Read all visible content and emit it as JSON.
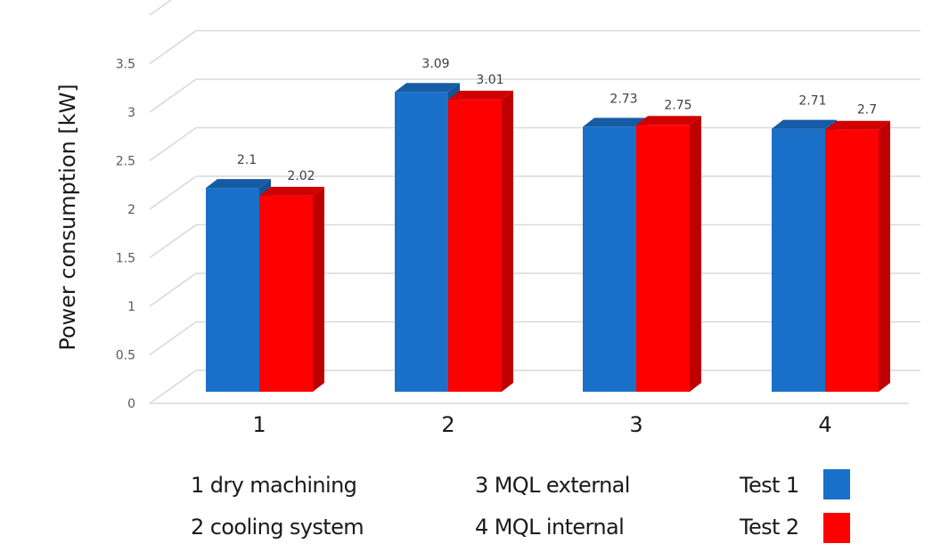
{
  "chart_data": {
    "type": "bar",
    "style": "3d-clustered-column",
    "title": "",
    "xlabel": "",
    "ylabel": "Power consumption [kW]",
    "categories": [
      "1",
      "2",
      "3",
      "4"
    ],
    "series": [
      {
        "name": "Test 1",
        "color": "#1a70c8",
        "values": [
          2.1,
          3.09,
          2.73,
          2.71
        ],
        "labels": [
          "2.1",
          "3.09",
          "2.73",
          "2.71"
        ]
      },
      {
        "name": "Test 2",
        "color": "#ff0000",
        "values": [
          2.02,
          3.01,
          2.75,
          2.7
        ],
        "labels": [
          "2.02",
          "3.01",
          "2.75",
          "2.7"
        ]
      }
    ],
    "ylim": [
      0,
      4
    ],
    "yticks": [
      0,
      0.5,
      1,
      1.5,
      2,
      2.5,
      3,
      3.5
    ],
    "ytick_labels": [
      "0",
      "0.5",
      "1",
      "1.5",
      "2",
      "2.5",
      "3",
      "3.5"
    ],
    "grid": true,
    "legend_placement": "bottom-right",
    "category_key": [
      "1 dry machining",
      "2 cooling system",
      "3 MQL external",
      "4 MQL internal"
    ]
  },
  "legend": {
    "items": [
      {
        "label": "Test 1",
        "color": "#1a70c8"
      },
      {
        "label": "Test 2",
        "color": "#ff0000"
      }
    ]
  }
}
